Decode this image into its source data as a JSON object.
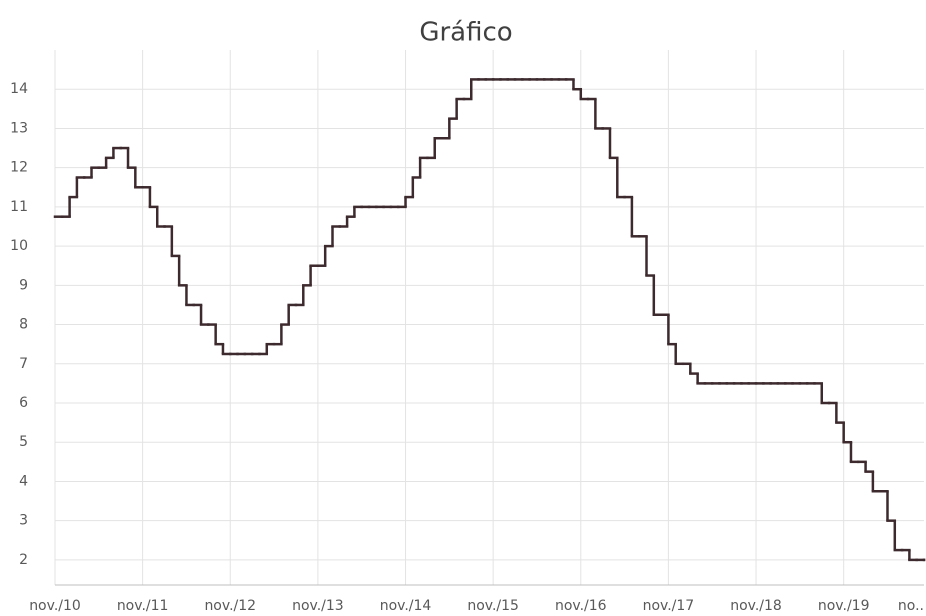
{
  "chart_data": {
    "type": "step",
    "title": "Gráfico",
    "x": [
      "2010-11",
      "2010-12",
      "2011-01",
      "2011-02",
      "2011-03",
      "2011-04",
      "2011-05",
      "2011-06",
      "2011-07",
      "2011-08",
      "2011-09",
      "2011-10",
      "2011-11",
      "2011-12",
      "2012-01",
      "2012-02",
      "2012-03",
      "2012-04",
      "2012-05",
      "2012-06",
      "2012-07",
      "2012-08",
      "2012-09",
      "2012-10",
      "2012-11",
      "2012-12",
      "2013-01",
      "2013-02",
      "2013-03",
      "2013-04",
      "2013-05",
      "2013-06",
      "2013-07",
      "2013-08",
      "2013-09",
      "2013-10",
      "2013-11",
      "2013-12",
      "2014-01",
      "2014-02",
      "2014-03",
      "2014-04",
      "2014-05",
      "2014-06",
      "2014-07",
      "2014-08",
      "2014-09",
      "2014-10",
      "2014-11",
      "2014-12",
      "2015-01",
      "2015-02",
      "2015-03",
      "2015-04",
      "2015-05",
      "2015-06",
      "2015-07",
      "2015-08",
      "2015-09",
      "2015-10",
      "2015-11",
      "2015-12",
      "2016-01",
      "2016-02",
      "2016-03",
      "2016-04",
      "2016-05",
      "2016-06",
      "2016-07",
      "2016-08",
      "2016-09",
      "2016-10",
      "2016-11",
      "2016-12",
      "2017-01",
      "2017-02",
      "2017-03",
      "2017-04",
      "2017-05",
      "2017-06",
      "2017-07",
      "2017-08",
      "2017-09",
      "2017-10",
      "2017-11",
      "2017-12",
      "2018-01",
      "2018-02",
      "2018-03",
      "2018-04",
      "2018-05",
      "2018-06",
      "2018-07",
      "2018-08",
      "2018-09",
      "2018-10",
      "2018-11",
      "2018-12",
      "2019-01",
      "2019-02",
      "2019-03",
      "2019-04",
      "2019-05",
      "2019-06",
      "2019-07",
      "2019-08",
      "2019-09",
      "2019-10",
      "2019-11",
      "2019-12",
      "2020-01",
      "2020-02",
      "2020-03",
      "2020-04",
      "2020-05",
      "2020-06",
      "2020-07",
      "2020-08",
      "2020-09",
      "2020-10"
    ],
    "series": [
      {
        "color": "#3d2a2e",
        "values": [
          10.75,
          10.75,
          11.25,
          11.75,
          11.75,
          12,
          12,
          12.25,
          12.5,
          12.5,
          12,
          11.5,
          11.5,
          11,
          10.5,
          10.5,
          9.75,
          9,
          8.5,
          8.5,
          8,
          8,
          7.5,
          7.25,
          7.25,
          7.25,
          7.25,
          7.25,
          7.25,
          7.5,
          7.5,
          8,
          8.5,
          8.5,
          9,
          9.5,
          9.5,
          10,
          10.5,
          10.5,
          10.75,
          11,
          11,
          11,
          11,
          11,
          11,
          11,
          11.25,
          11.75,
          12.25,
          12.25,
          12.75,
          12.75,
          13.25,
          13.75,
          13.75,
          14.25,
          14.25,
          14.25,
          14.25,
          14.25,
          14.25,
          14.25,
          14.25,
          14.25,
          14.25,
          14.25,
          14.25,
          14.25,
          14.25,
          14,
          13.75,
          13.75,
          13,
          13,
          12.25,
          11.25,
          11.25,
          10.25,
          10.25,
          9.25,
          8.25,
          8.25,
          7.5,
          7,
          7,
          6.75,
          6.5,
          6.5,
          6.5,
          6.5,
          6.5,
          6.5,
          6.5,
          6.5,
          6.5,
          6.5,
          6.5,
          6.5,
          6.5,
          6.5,
          6.5,
          6.5,
          6.5,
          6,
          6,
          5.5,
          5,
          4.5,
          4.5,
          4.25,
          3.75,
          3.75,
          3,
          2.25,
          2.25,
          2,
          2,
          2
        ]
      }
    ],
    "xlim": [
      "2010-11",
      "2020-10"
    ],
    "xticks": [
      {
        "value": "2010-11",
        "label": "nov./10"
      },
      {
        "value": "2011-11",
        "label": "nov./11"
      },
      {
        "value": "2012-11",
        "label": "nov./12"
      },
      {
        "value": "2013-11",
        "label": "nov./13"
      },
      {
        "value": "2014-11",
        "label": "nov./14"
      },
      {
        "value": "2015-11",
        "label": "nov./15"
      },
      {
        "value": "2016-11",
        "label": "nov./16"
      },
      {
        "value": "2017-11",
        "label": "nov./17"
      },
      {
        "value": "2018-11",
        "label": "nov./18"
      },
      {
        "value": "2019-11",
        "label": "nov./19"
      },
      {
        "value": "2020-11",
        "label": "no.."
      }
    ],
    "ylim": [
      1.36,
      15
    ],
    "yticks": [
      2,
      3,
      4,
      5,
      6,
      7,
      8,
      9,
      10,
      11,
      12,
      13,
      14
    ],
    "grid": true
  }
}
